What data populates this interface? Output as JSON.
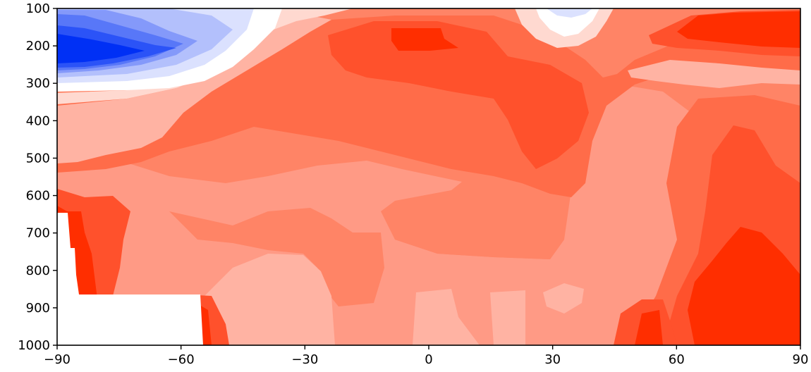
{
  "chart_data": {
    "type": "heatmap",
    "subtype": "filled-contour",
    "title": "",
    "xlabel": "",
    "ylabel": "",
    "xlim": [
      -90,
      90
    ],
    "ylim": [
      1000,
      100
    ],
    "y_inverted": true,
    "x_ticks": [
      -90,
      -60,
      -30,
      0,
      30,
      60,
      90
    ],
    "x_tick_labels": [
      "−90",
      "−60",
      "−30",
      "0",
      "30",
      "60",
      "90"
    ],
    "y_ticks": [
      100,
      200,
      300,
      400,
      500,
      600,
      700,
      800,
      900,
      1000
    ],
    "y_tick_labels": [
      "100",
      "200",
      "300",
      "400",
      "500",
      "600",
      "700",
      "800",
      "900",
      "1000"
    ],
    "grid": false,
    "colormap": "bwr",
    "colors": {
      "levels": [
        "#0030f5",
        "#2b53f7",
        "#5877f8",
        "#8499fa",
        "#b3c0fc",
        "#dbe1fe",
        "#ffffff",
        "#ffd9d0",
        "#ffb3a3",
        "#ff9a85",
        "#ff8466",
        "#ff6c49",
        "#ff512c",
        "#ff2e00"
      ]
    },
    "masked_region": "terrain (white) near lower left, approx. -90 to -55 longitude below ~650-870 hPa",
    "regions": [
      {
        "x": -82,
        "y": 210,
        "level": 0
      },
      {
        "x": -72,
        "y": 160,
        "level": 3
      },
      {
        "x": -55,
        "y": 120,
        "level": 6
      },
      {
        "x": 33,
        "y": 110,
        "level": 6
      },
      {
        "x": -5,
        "y": 150,
        "level": 13
      },
      {
        "x": 78,
        "y": 160,
        "level": 13
      },
      {
        "x": -10,
        "y": 300,
        "level": 12
      },
      {
        "x": 25,
        "y": 420,
        "level": 12
      },
      {
        "x": 60,
        "y": 250,
        "level": 9
      },
      {
        "x": -30,
        "y": 500,
        "level": 11
      },
      {
        "x": 0,
        "y": 650,
        "level": 11
      },
      {
        "x": -5,
        "y": 580,
        "level": 10
      },
      {
        "x": -20,
        "y": 730,
        "level": 9
      },
      {
        "x": -35,
        "y": 860,
        "level": 9
      },
      {
        "x": 0,
        "y": 920,
        "level": 8
      },
      {
        "x": 30,
        "y": 840,
        "level": 9
      },
      {
        "x": 42,
        "y": 700,
        "level": 10
      },
      {
        "x": 75,
        "y": 600,
        "level": 12
      },
      {
        "x": 75,
        "y": 900,
        "level": 13
      },
      {
        "x": -80,
        "y": 800,
        "level": 13
      },
      {
        "x": -75,
        "y": 700,
        "level": 12
      }
    ]
  }
}
